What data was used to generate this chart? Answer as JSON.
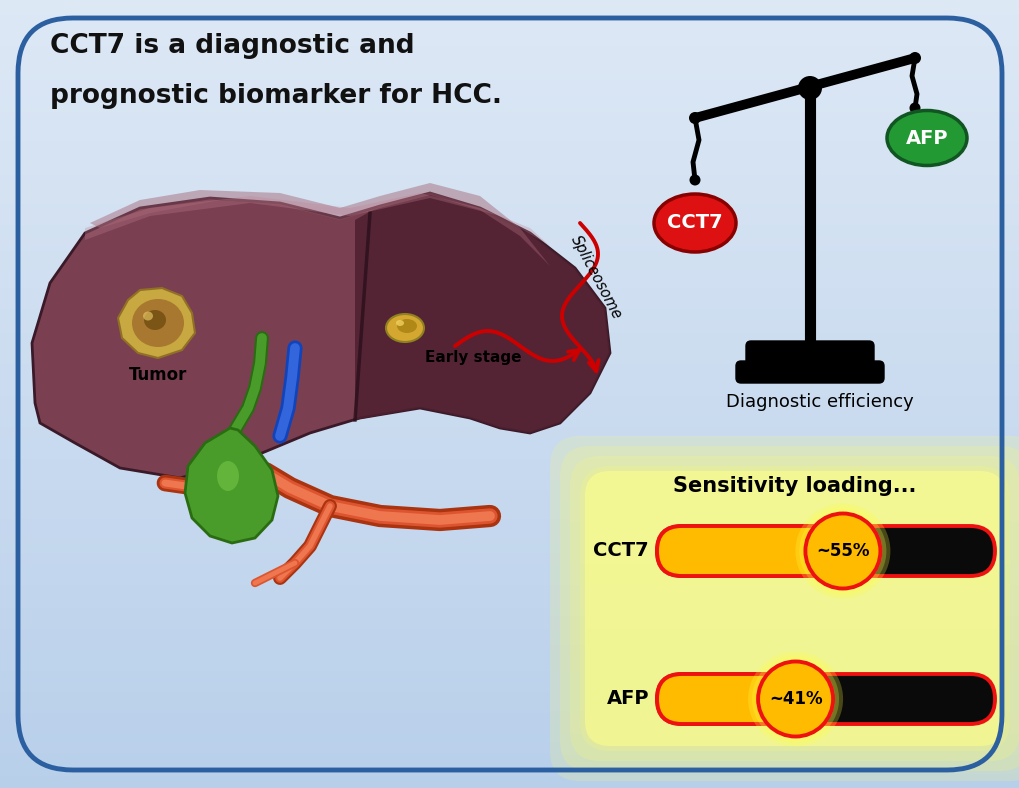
{
  "bg_color_top": "#dde8f5",
  "bg_color_bottom": "#b8cfea",
  "border_color": "#2b5fa0",
  "title_line1": "CCT7 is a diagnostic and",
  "title_line2": "prognostic biomarker for HCC.",
  "title_color": "#111111",
  "title_fontsize": 19,
  "scale_label": "Diagnostic efficiency",
  "scale_label_fontsize": 13,
  "cct7_label": "CCT7",
  "afp_label": "AFP",
  "cct7_color": "#dd1111",
  "afp_color": "#229933",
  "spliceosome_label": "Spliceosome",
  "early_stage_label": "Early stage",
  "tumor_label": "Tumor",
  "sensitivity_title": "Sensitivity loading...",
  "bar1_label": "CCT7",
  "bar1_value": 0.55,
  "bar1_text": "~55%",
  "bar2_label": "AFP",
  "bar2_value": 0.41,
  "bar2_text": "~41%",
  "bar_fill_color": "#ffbb00",
  "bar_bg_color": "#0a0a0a",
  "bar_border_color": "#ee1111",
  "bar_glow_color": "#ffff66",
  "liver_main": "#7b3f52",
  "liver_dark": "#4e2030",
  "liver_light": "#9a5565",
  "gallbladder_color": "#4a9c2a",
  "gallbladder_dark": "#2a6c12"
}
